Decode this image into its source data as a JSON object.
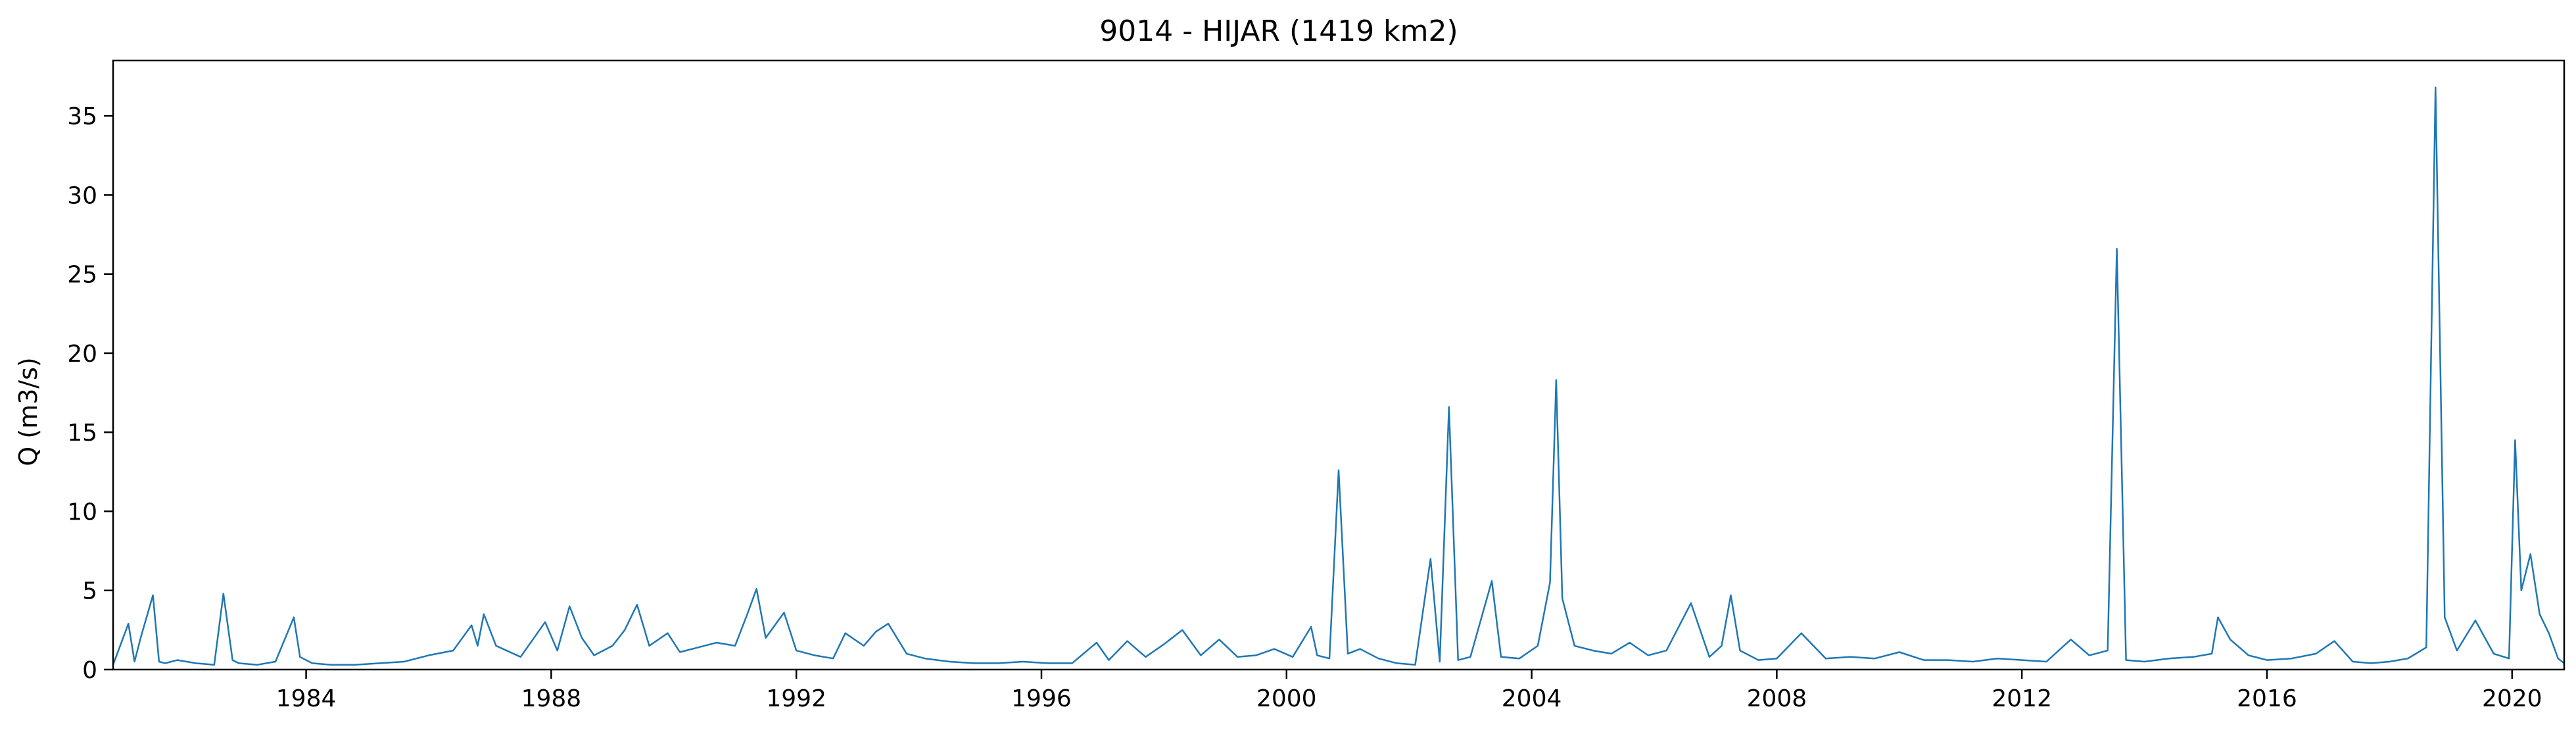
{
  "chart_data": {
    "type": "line",
    "title": "9014 - HIJAR (1419 km2)",
    "xlabel": "",
    "ylabel": "Q (m3/s)",
    "xlim": [
      1980.85,
      2020.85
    ],
    "ylim": [
      0,
      38.5
    ],
    "x_ticks": [
      1984,
      1988,
      1992,
      1996,
      2000,
      2004,
      2008,
      2012,
      2016,
      2020
    ],
    "x_tick_labels": [
      "1984",
      "1988",
      "1992",
      "1996",
      "2000",
      "2004",
      "2008",
      "2012",
      "2016",
      "2020"
    ],
    "y_ticks": [
      0,
      5,
      10,
      15,
      20,
      25,
      30,
      35
    ],
    "y_tick_labels": [
      "0",
      "5",
      "10",
      "15",
      "20",
      "25",
      "30",
      "35"
    ],
    "grid": false,
    "series": [
      {
        "color": "#1f77b4",
        "x": [
          1980.85,
          1981.1,
          1981.2,
          1981.3,
          1981.5,
          1981.6,
          1981.7,
          1981.9,
          1982.2,
          1982.5,
          1982.65,
          1982.8,
          1982.9,
          1983.2,
          1983.5,
          1983.8,
          1983.9,
          1984.1,
          1984.4,
          1984.8,
          1985.2,
          1985.6,
          1986.0,
          1986.4,
          1986.7,
          1986.8,
          1986.9,
          1987.1,
          1987.5,
          1987.9,
          1988.1,
          1988.3,
          1988.5,
          1988.7,
          1989.0,
          1989.2,
          1989.4,
          1989.6,
          1989.9,
          1990.1,
          1990.4,
          1990.7,
          1991.0,
          1991.2,
          1991.35,
          1991.5,
          1991.8,
          1992.0,
          1992.3,
          1992.6,
          1992.8,
          1993.1,
          1993.3,
          1993.5,
          1993.8,
          1994.1,
          1994.5,
          1994.9,
          1995.3,
          1995.7,
          1996.1,
          1996.5,
          1996.9,
          1997.1,
          1997.4,
          1997.7,
          1998.0,
          1998.3,
          1998.6,
          1998.9,
          1999.2,
          1999.5,
          1999.8,
          2000.1,
          2000.4,
          2000.5,
          2000.7,
          2000.85,
          2001.0,
          2001.2,
          2001.5,
          2001.8,
          2002.1,
          2002.35,
          2002.5,
          2002.65,
          2002.8,
          2003.0,
          2003.35,
          2003.5,
          2003.8,
          2004.1,
          2004.3,
          2004.4,
          2004.5,
          2004.7,
          2005.0,
          2005.3,
          2005.6,
          2005.9,
          2006.2,
          2006.6,
          2006.9,
          2007.1,
          2007.25,
          2007.4,
          2007.7,
          2008.0,
          2008.4,
          2008.8,
          2009.2,
          2009.6,
          2010.0,
          2010.4,
          2010.8,
          2011.2,
          2011.6,
          2012.0,
          2012.4,
          2012.8,
          2013.1,
          2013.4,
          2013.55,
          2013.7,
          2014.0,
          2014.4,
          2014.8,
          2015.1,
          2015.2,
          2015.4,
          2015.7,
          2016.0,
          2016.4,
          2016.8,
          2017.1,
          2017.4,
          2017.7,
          2018.0,
          2018.3,
          2018.6,
          2018.75,
          2018.9,
          2019.1,
          2019.4,
          2019.7,
          2019.95,
          2020.05,
          2020.15,
          2020.3,
          2020.45,
          2020.6,
          2020.75,
          2020.85
        ],
        "y": [
          0.3,
          2.9,
          0.5,
          2.0,
          4.7,
          0.5,
          0.4,
          0.6,
          0.4,
          0.3,
          4.8,
          0.6,
          0.4,
          0.3,
          0.5,
          3.3,
          0.8,
          0.4,
          0.3,
          0.3,
          0.4,
          0.5,
          0.9,
          1.2,
          2.8,
          1.5,
          3.5,
          1.5,
          0.8,
          3.0,
          1.2,
          4.0,
          2.0,
          0.9,
          1.5,
          2.5,
          4.1,
          1.5,
          2.3,
          1.1,
          1.4,
          1.7,
          1.5,
          3.5,
          5.1,
          2.0,
          3.6,
          1.2,
          0.9,
          0.7,
          2.3,
          1.5,
          2.4,
          2.9,
          1.0,
          0.7,
          0.5,
          0.4,
          0.4,
          0.5,
          0.4,
          0.4,
          1.7,
          0.6,
          1.8,
          0.8,
          1.6,
          2.5,
          0.9,
          1.9,
          0.8,
          0.9,
          1.3,
          0.8,
          2.7,
          0.9,
          0.7,
          12.6,
          1.0,
          1.3,
          0.7,
          0.4,
          0.3,
          7.0,
          0.5,
          16.6,
          0.6,
          0.8,
          5.6,
          0.8,
          0.7,
          1.5,
          5.5,
          18.3,
          4.5,
          1.5,
          1.2,
          1.0,
          1.7,
          0.9,
          1.2,
          4.2,
          0.8,
          1.5,
          4.7,
          1.2,
          0.6,
          0.7,
          2.3,
          0.7,
          0.8,
          0.7,
          1.1,
          0.6,
          0.6,
          0.5,
          0.7,
          0.6,
          0.5,
          1.9,
          0.9,
          1.2,
          26.6,
          0.6,
          0.5,
          0.7,
          0.8,
          1.0,
          3.3,
          1.9,
          0.9,
          0.6,
          0.7,
          1.0,
          1.8,
          0.5,
          0.4,
          0.5,
          0.7,
          1.4,
          36.8,
          3.3,
          1.2,
          3.1,
          1.0,
          0.7,
          14.5,
          5.0,
          7.3,
          3.5,
          2.3,
          0.7,
          0.4
        ]
      }
    ]
  }
}
